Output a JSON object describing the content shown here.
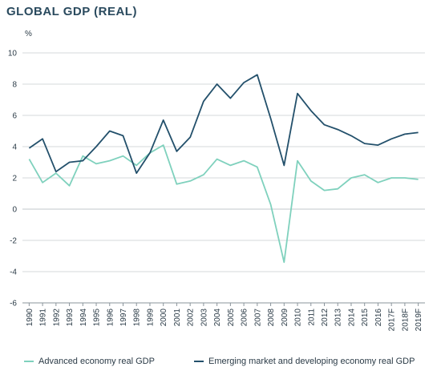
{
  "chart_data": {
    "type": "line",
    "title": "GLOBAL GDP (REAL)",
    "ylabel": "%",
    "xlabel": "",
    "ylim": [
      -6,
      10
    ],
    "yticks": [
      10,
      8,
      6,
      4,
      2,
      0,
      -2,
      -4,
      -6
    ],
    "grid": true,
    "legend_position": "bottom",
    "categories": [
      "1990",
      "1991",
      "1992",
      "1993",
      "1994",
      "1995",
      "1996",
      "1997",
      "1998",
      "1999",
      "2000",
      "2001",
      "2002",
      "2003",
      "2004",
      "2005",
      "2006",
      "2007",
      "2008",
      "2009",
      "2010",
      "2011",
      "2012",
      "2013",
      "2014",
      "2015",
      "2016",
      "2017F",
      "2018F",
      "2019F"
    ],
    "series": [
      {
        "name": "Advanced economy real GDP",
        "color": "#7fd1bd",
        "values": [
          3.2,
          1.7,
          2.3,
          1.5,
          3.4,
          2.9,
          3.1,
          3.4,
          2.8,
          3.6,
          4.1,
          1.6,
          1.8,
          2.2,
          3.2,
          2.8,
          3.1,
          2.7,
          0.3,
          -3.4,
          3.1,
          1.8,
          1.2,
          1.3,
          2.0,
          2.2,
          1.7,
          2.0,
          2.0,
          1.9
        ]
      },
      {
        "name": "Emerging market and developing economy real GDP",
        "color": "#23506b",
        "values": [
          3.9,
          4.5,
          2.4,
          3.0,
          3.1,
          4.0,
          5.0,
          4.7,
          2.3,
          3.6,
          5.7,
          3.7,
          4.6,
          6.9,
          8.0,
          7.1,
          8.1,
          8.6,
          5.8,
          2.8,
          7.4,
          6.3,
          5.4,
          5.1,
          4.7,
          4.2,
          4.1,
          4.5,
          4.8,
          4.9
        ]
      }
    ]
  }
}
